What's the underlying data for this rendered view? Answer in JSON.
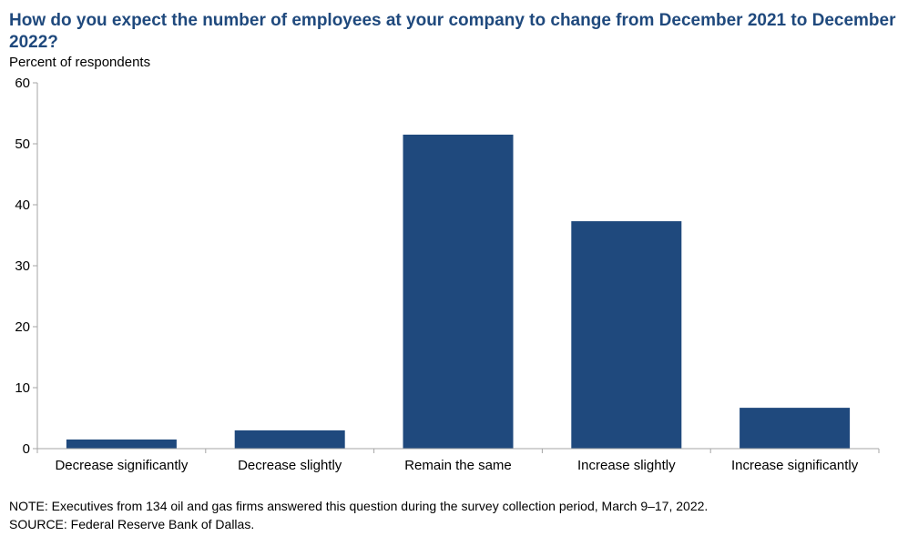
{
  "title": "How do you expect the number of employees at your company to change from December 2021 to December 2022?",
  "colors": {
    "title": "#1f497d",
    "bar": "#1f497d",
    "axis": "#a6a6a6"
  },
  "chart_data": {
    "type": "bar",
    "title": "How do you expect the number of employees at your company to change from December 2021 to December 2022?",
    "ylabel": "Percent of respondents",
    "xlabel": "",
    "categories": [
      "Decrease significantly",
      "Decrease slightly",
      "Remain the same",
      "Increase slightly",
      "Increase significantly"
    ],
    "values": [
      1.5,
      3.0,
      51.5,
      37.3,
      6.7
    ],
    "ylim": [
      0,
      60
    ],
    "yticks": [
      0,
      10,
      20,
      30,
      40,
      50,
      60
    ],
    "grid": false,
    "legend": "none"
  },
  "footnotes": {
    "note": "NOTE:  Executives  from  134  oil  and  gas  firms  answered  this  question  during  the  survey  collection  period,  March  9–17,  2022.",
    "source": "SOURCE:  Federal  Reserve  Bank  of  Dallas."
  }
}
